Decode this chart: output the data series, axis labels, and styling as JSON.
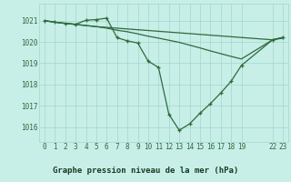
{
  "background_color": "#c8eee8",
  "grid_color": "#a0d8cc",
  "line_color": "#2d6b3c",
  "title": "Graphe pression niveau de la mer (hPa)",
  "title_bg": "#5aaa72",
  "ylabel_values": [
    1016,
    1017,
    1018,
    1019,
    1020,
    1021
  ],
  "xlim": [
    -0.5,
    23.5
  ],
  "ylim": [
    1015.3,
    1021.8
  ],
  "xtick_positions": [
    0,
    1,
    2,
    3,
    4,
    5,
    6,
    7,
    8,
    9,
    10,
    11,
    12,
    13,
    14,
    15,
    16,
    17,
    18,
    19,
    22,
    23
  ],
  "xtick_labels": [
    "0",
    "1",
    "2",
    "3",
    "4",
    "5",
    "6",
    "7",
    "8",
    "9",
    "10",
    "11",
    "12",
    "13",
    "14",
    "15",
    "16",
    "17",
    "18",
    "19",
    "22",
    "23"
  ],
  "line1_x": [
    0,
    1,
    2,
    3,
    4,
    5,
    6,
    7,
    8,
    9,
    10,
    11,
    12,
    13,
    14,
    15,
    16,
    17,
    18,
    19,
    22,
    23
  ],
  "line1_y": [
    1021.0,
    1020.93,
    1020.87,
    1020.82,
    1020.77,
    1020.72,
    1020.65,
    1020.55,
    1020.48,
    1020.38,
    1020.27,
    1020.18,
    1020.08,
    1019.98,
    1019.85,
    1019.72,
    1019.58,
    1019.45,
    1019.32,
    1019.2,
    1020.1,
    1020.2
  ],
  "line2_x": [
    0,
    1,
    2,
    3,
    4,
    5,
    6,
    7,
    8,
    9,
    10,
    11,
    12,
    13,
    14,
    15,
    16,
    17,
    18,
    19,
    22,
    23
  ],
  "line2_y": [
    1021.0,
    1020.93,
    1020.87,
    1020.83,
    1021.02,
    1021.05,
    1021.12,
    1020.2,
    1020.05,
    1019.95,
    1019.1,
    1018.8,
    1016.6,
    1015.85,
    1016.15,
    1016.65,
    1017.1,
    1017.6,
    1018.15,
    1018.9,
    1020.1,
    1020.22
  ],
  "line3_x": [
    0,
    1,
    2,
    3,
    4,
    5,
    22,
    23
  ],
  "line3_y": [
    1021.0,
    1020.93,
    1020.88,
    1020.83,
    1020.77,
    1020.72,
    1020.1,
    1020.18
  ]
}
